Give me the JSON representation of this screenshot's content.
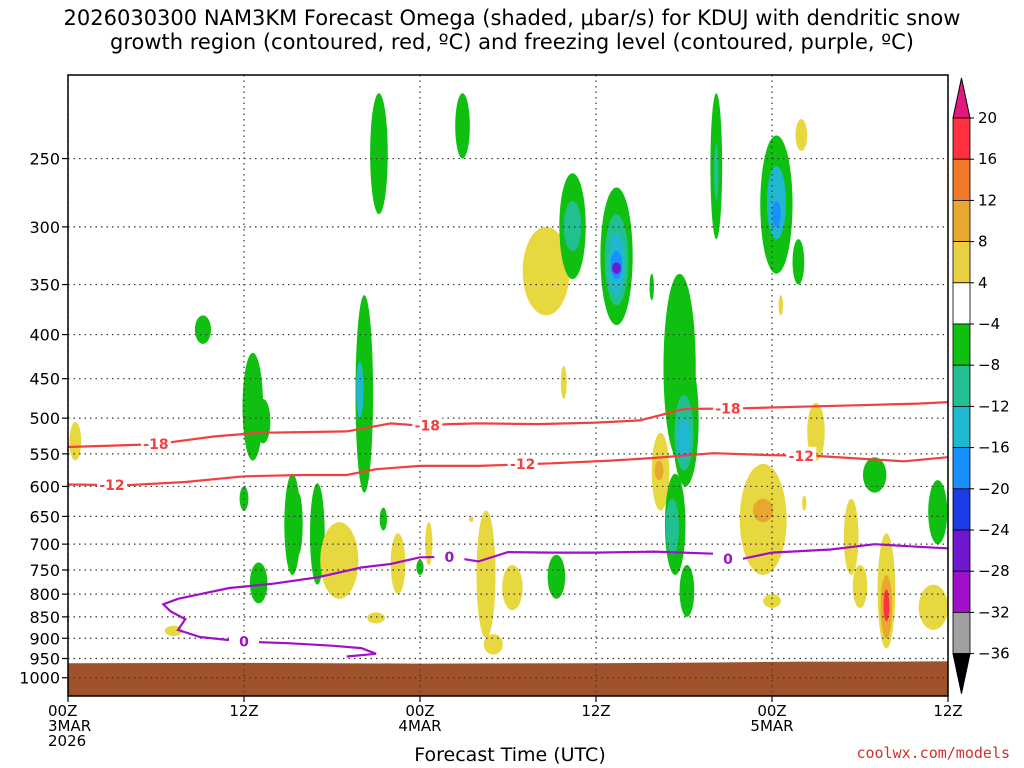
{
  "title_line1": "2026030300 NAM3KM Forecast Omega (shaded, μbar/s) for KDUJ with dendritic snow",
  "title_line2": "growth region (contoured, red, ºC) and freezing level (contoured, purple, ºC)",
  "credit": "coolwx.com/models",
  "chart_data": {
    "type": "heatmap",
    "title": "2026030300 NAM3KM Forecast Omega (shaded, μbar/s) for KDUJ with dendritic snow growth region (contoured, red, ºC) and freezing level (contoured, purple, ºC)",
    "xlabel": "Forecast Time (UTC)",
    "ylabel": "",
    "x_range_hours": [
      0,
      60
    ],
    "y_range_hpa": [
      1050,
      200
    ],
    "y_scale": "log",
    "grid": true,
    "y_ticks": [
      250,
      300,
      350,
      400,
      450,
      500,
      550,
      600,
      650,
      700,
      750,
      800,
      850,
      900,
      950,
      1000
    ],
    "x_ticks": [
      {
        "hour": 0,
        "lines": [
          "00Z",
          "3MAR",
          "2026"
        ]
      },
      {
        "hour": 12,
        "lines": [
          "12Z"
        ]
      },
      {
        "hour": 24,
        "lines": [
          "00Z",
          "4MAR"
        ]
      },
      {
        "hour": 36,
        "lines": [
          "12Z"
        ]
      },
      {
        "hour": 48,
        "lines": [
          "00Z",
          "5MAR"
        ]
      },
      {
        "hour": 60,
        "lines": [
          "12Z"
        ]
      }
    ],
    "colorbar": {
      "labels": [
        "20",
        "16",
        "12",
        "8",
        "4",
        "−4",
        "−8",
        "−12",
        "−16",
        "−20",
        "−24",
        "−28",
        "−32",
        "−36"
      ],
      "colors": [
        "#ff3040",
        "#f07828",
        "#e8a830",
        "#e8d040",
        "#ffffff",
        "#10c010",
        "#20c090",
        "#20b8d0",
        "#1890ff",
        "#1c3ce8",
        "#7018d0",
        "#a010c8",
        "#a0a0a0"
      ],
      "top_arrow_color": "#e01880",
      "bottom_arrow_color": "#000000"
    },
    "contours": [
      {
        "color": "#f04040",
        "label": "-18",
        "points": [
          [
            0,
            540
          ],
          [
            3,
            538
          ],
          [
            6,
            536
          ],
          [
            10,
            525
          ],
          [
            13,
            520
          ],
          [
            16,
            519
          ],
          [
            19,
            518
          ],
          [
            22,
            507
          ],
          [
            24,
            510
          ],
          [
            26,
            508
          ],
          [
            28,
            507
          ],
          [
            32,
            508
          ],
          [
            36,
            506
          ],
          [
            39,
            503
          ],
          [
            42,
            488
          ],
          [
            46,
            487
          ],
          [
            50,
            485
          ],
          [
            54,
            483
          ],
          [
            58,
            481
          ],
          [
            60,
            479
          ]
        ],
        "label_at": [
          [
            6,
            536
          ],
          [
            24.5,
            510
          ],
          [
            45,
            487
          ]
        ]
      },
      {
        "color": "#f04040",
        "label": "-12",
        "points": [
          [
            0,
            597
          ],
          [
            4,
            598
          ],
          [
            8,
            593
          ],
          [
            12,
            584
          ],
          [
            16,
            582
          ],
          [
            19,
            582
          ],
          [
            21,
            573
          ],
          [
            24,
            568
          ],
          [
            28,
            568
          ],
          [
            33,
            564
          ],
          [
            37,
            560
          ],
          [
            40,
            556
          ],
          [
            44,
            549
          ],
          [
            48,
            552
          ],
          [
            51,
            553
          ],
          [
            54,
            557
          ],
          [
            57,
            561
          ],
          [
            60,
            555
          ]
        ],
        "label_at": [
          [
            3,
            598
          ],
          [
            31,
            565
          ],
          [
            50,
            553
          ]
        ]
      },
      {
        "color": "#a010c8",
        "label": "0",
        "points": [
          [
            7.5,
            810
          ],
          [
            9,
            800
          ],
          [
            11,
            787
          ],
          [
            14,
            778
          ],
          [
            17,
            765
          ],
          [
            20,
            745
          ],
          [
            22,
            738
          ],
          [
            24,
            725
          ],
          [
            26,
            724
          ],
          [
            28,
            733
          ],
          [
            30,
            715
          ],
          [
            33,
            716
          ],
          [
            36,
            716
          ],
          [
            40,
            714
          ],
          [
            44,
            718
          ],
          [
            46,
            728
          ],
          [
            48,
            716
          ],
          [
            52,
            710
          ],
          [
            55,
            700
          ],
          [
            58,
            705
          ],
          [
            60,
            708
          ]
        ],
        "label_at": [
          [
            26,
            724
          ],
          [
            45,
            728
          ]
        ]
      },
      {
        "color": "#a010c8",
        "label": "0",
        "points": [
          [
            7.5,
            810
          ],
          [
            6.5,
            822
          ],
          [
            7,
            838
          ],
          [
            8,
            855
          ],
          [
            7.5,
            880
          ],
          [
            9,
            897
          ],
          [
            12,
            908
          ],
          [
            15,
            912
          ],
          [
            18,
            918
          ],
          [
            20,
            924
          ],
          [
            21,
            938
          ],
          [
            19,
            945
          ]
        ],
        "label_at": [
          [
            12,
            908
          ]
        ]
      }
    ]
  }
}
